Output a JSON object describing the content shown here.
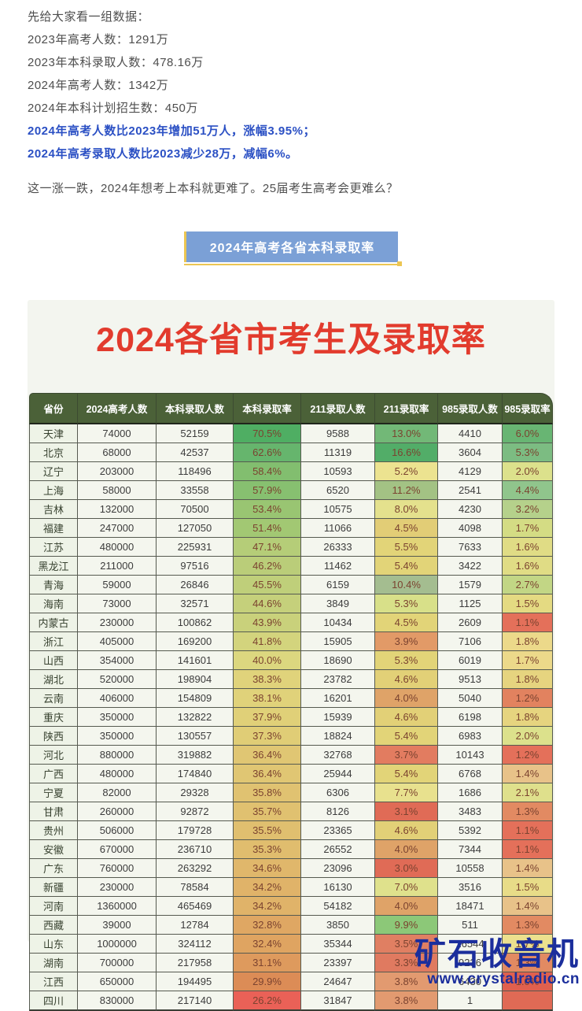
{
  "intro": {
    "lines": [
      "先给大家看一组数据：",
      "2023年高考人数：1291万",
      "2023年本科录取人数：478.16万",
      "2024年高考人数：1342万",
      "2024年本科计划招生数：450万"
    ],
    "highlight_lines": [
      "2024年高考人数比2023年增加51万人，涨幅3.95%；",
      "2024年高考录取人数比2023减少28万，减幅6%。"
    ],
    "highlight_color": "#2b50c4",
    "question": "这一涨一跌，2024年想考上本科就更难了。25届考生高考会更难么？"
  },
  "section_button": {
    "label": "2024年高考各省本科录取率",
    "bg": "#7ba0d6",
    "accent": "#ecc653"
  },
  "table": {
    "title": "2024各省市考生及录取率",
    "title_color": "#e23b2d",
    "header_bg": "#4b6138",
    "headers": [
      "省份",
      "2024高考人数",
      "本科录取人数",
      "本科录取率",
      "211录取人数",
      "211录取率",
      "985录取人数",
      "985录取率"
    ],
    "rows": [
      {
        "cells": [
          "天津",
          "74000",
          "52159",
          "70.5%",
          "9588",
          "13.0%",
          "4410",
          "6.0%"
        ],
        "colors": [
          "#4fae63",
          "#72b877",
          "#68b573"
        ]
      },
      {
        "cells": [
          "北京",
          "68000",
          "42537",
          "62.6%",
          "11319",
          "16.6%",
          "3604",
          "5.3%"
        ],
        "colors": [
          "#66b56d",
          "#52ad68",
          "#7cbc82"
        ]
      },
      {
        "cells": [
          "辽宁",
          "203000",
          "118496",
          "58.4%",
          "10593",
          "5.2%",
          "4129",
          "2.0%"
        ],
        "colors": [
          "#82be6f",
          "#ece390",
          "#dce18c"
        ]
      },
      {
        "cells": [
          "上海",
          "58000",
          "33558",
          "57.9%",
          "6520",
          "11.2%",
          "2541",
          "4.4%"
        ],
        "colors": [
          "#87c070",
          "#a3c284",
          "#90c58c"
        ]
      },
      {
        "cells": [
          "吉林",
          "132000",
          "70500",
          "53.4%",
          "10575",
          "8.0%",
          "4230",
          "3.2%"
        ],
        "colors": [
          "#99c572",
          "#e4e18d",
          "#b5d18b"
        ]
      },
      {
        "cells": [
          "福建",
          "247000",
          "127050",
          "51.4%",
          "11066",
          "4.5%",
          "4098",
          "1.7%"
        ],
        "colors": [
          "#a2c873",
          "#e2cd76",
          "#d4dc84"
        ]
      },
      {
        "cells": [
          "江苏",
          "480000",
          "225931",
          "47.1%",
          "26333",
          "5.5%",
          "7633",
          "1.6%"
        ],
        "colors": [
          "#b5cd78",
          "#e2d478",
          "#e0dc85"
        ]
      },
      {
        "cells": [
          "黑龙江",
          "211000",
          "97516",
          "46.2%",
          "11462",
          "5.4%",
          "3422",
          "1.6%"
        ],
        "colors": [
          "#bacd79",
          "#e2d478",
          "#e0dc85"
        ]
      },
      {
        "cells": [
          "青海",
          "59000",
          "26846",
          "45.5%",
          "6159",
          "10.4%",
          "1579",
          "2.7%"
        ],
        "colors": [
          "#bfcf7a",
          "#a4bd90",
          "#c2d685"
        ]
      },
      {
        "cells": [
          "海南",
          "73000",
          "32571",
          "44.6%",
          "3849",
          "5.3%",
          "1125",
          "1.5%"
        ],
        "colors": [
          "#c5d07b",
          "#d8e089",
          "#e4da82"
        ]
      },
      {
        "cells": [
          "内蒙古",
          "230000",
          "100862",
          "43.9%",
          "10434",
          "4.5%",
          "2609",
          "1.1%"
        ],
        "colors": [
          "#c9d17b",
          "#e2d478",
          "#e4705a"
        ]
      },
      {
        "cells": [
          "浙江",
          "405000",
          "169200",
          "41.8%",
          "15905",
          "3.9%",
          "7106",
          "1.8%"
        ],
        "colors": [
          "#d3d47d",
          "#e29a67",
          "#ecd98a"
        ]
      },
      {
        "cells": [
          "山西",
          "354000",
          "141601",
          "40.0%",
          "18690",
          "5.3%",
          "6019",
          "1.7%"
        ],
        "colors": [
          "#dcd77f",
          "#e2d478",
          "#ecd98a"
        ]
      },
      {
        "cells": [
          "湖北",
          "520000",
          "198904",
          "38.3%",
          "23782",
          "4.6%",
          "9513",
          "1.8%"
        ],
        "colors": [
          "#e0d37b",
          "#e2d077",
          "#e6d47f"
        ]
      },
      {
        "cells": [
          "云南",
          "406000",
          "154809",
          "38.1%",
          "16201",
          "4.0%",
          "5040",
          "1.2%"
        ],
        "colors": [
          "#e0d27a",
          "#dfa368",
          "#e2825f"
        ]
      },
      {
        "cells": [
          "重庆",
          "350000",
          "132822",
          "37.9%",
          "15939",
          "4.6%",
          "6198",
          "1.8%"
        ],
        "colors": [
          "#e0d078",
          "#e2d077",
          "#e6d47f"
        ]
      },
      {
        "cells": [
          "陕西",
          "350000",
          "130557",
          "37.3%",
          "18824",
          "5.4%",
          "6983",
          "2.0%"
        ],
        "colors": [
          "#e0cd76",
          "#e2d478",
          "#dce18c"
        ]
      },
      {
        "cells": [
          "河北",
          "880000",
          "319882",
          "36.4%",
          "32768",
          "3.7%",
          "10143",
          "1.2%"
        ],
        "colors": [
          "#e0c673",
          "#e27c60",
          "#e4705a"
        ]
      },
      {
        "cells": [
          "广西",
          "480000",
          "174840",
          "36.4%",
          "25944",
          "5.4%",
          "6768",
          "1.4%"
        ],
        "colors": [
          "#e0c673",
          "#e2d478",
          "#e8c289"
        ]
      },
      {
        "cells": [
          "宁夏",
          "82000",
          "29328",
          "35.8%",
          "6306",
          "7.7%",
          "1686",
          "2.1%"
        ],
        "colors": [
          "#e0c271",
          "#e8e18e",
          "#dfe08c"
        ]
      },
      {
        "cells": [
          "甘肃",
          "260000",
          "92872",
          "35.7%",
          "8126",
          "3.1%",
          "3483",
          "1.3%"
        ],
        "colors": [
          "#e0c170",
          "#e06b56",
          "#e28a62"
        ]
      },
      {
        "cells": [
          "贵州",
          "506000",
          "179728",
          "35.5%",
          "23365",
          "4.6%",
          "5392",
          "1.1%"
        ],
        "colors": [
          "#e0bf6f",
          "#e2d077",
          "#e4705a"
        ]
      },
      {
        "cells": [
          "安徽",
          "670000",
          "236710",
          "35.3%",
          "26552",
          "4.0%",
          "7344",
          "1.1%"
        ],
        "colors": [
          "#e0bd6e",
          "#dfa368",
          "#e4705a"
        ]
      },
      {
        "cells": [
          "广东",
          "760000",
          "263292",
          "34.6%",
          "23096",
          "3.0%",
          "10558",
          "1.4%"
        ],
        "colors": [
          "#e0b76b",
          "#e06b56",
          "#e8c289"
        ]
      },
      {
        "cells": [
          "新疆",
          "230000",
          "78584",
          "34.2%",
          "16130",
          "7.0%",
          "3516",
          "1.5%"
        ],
        "colors": [
          "#e0b369",
          "#dfe18c",
          "#e8dc88"
        ]
      },
      {
        "cells": [
          "河南",
          "1360000",
          "465469",
          "34.2%",
          "54182",
          "4.0%",
          "18471",
          "1.4%"
        ],
        "colors": [
          "#e0b369",
          "#dfa368",
          "#e8c289"
        ]
      },
      {
        "cells": [
          "西藏",
          "39000",
          "12784",
          "32.8%",
          "3850",
          "9.9%",
          "511",
          "1.3%"
        ],
        "colors": [
          "#dfa763",
          "#8cc878",
          "#e28a62"
        ]
      },
      {
        "cells": [
          "山东",
          "1000000",
          "324112",
          "32.4%",
          "35344",
          "3.5%",
          "16544",
          "1.7%"
        ],
        "colors": [
          "#dfa461",
          "#e07f62",
          "#ece08e"
        ]
      },
      {
        "cells": [
          "湖南",
          "700000",
          "217958",
          "31.1%",
          "23397",
          "3.3%",
          "9236",
          "1.3%"
        ],
        "colors": [
          "#de9a5d",
          "#e07a60",
          "#e28a62"
        ]
      },
      {
        "cells": [
          "江西",
          "650000",
          "194495",
          "29.9%",
          "24647",
          "3.8%",
          "6430",
          "1.0%"
        ],
        "colors": [
          "#dc8c56",
          "#e29a70",
          "#e0604e"
        ]
      },
      {
        "cells": [
          "四川",
          "830000",
          "217140",
          "26.2%",
          "31847",
          "3.8%",
          "1",
          ""
        ],
        "colors": [
          "#ea6157",
          "#e29a70",
          "#e06a55"
        ]
      }
    ]
  },
  "watermark": {
    "title": "矿石收音机",
    "url": "www.crystalradio.cn",
    "color": "#1b2e9c"
  }
}
